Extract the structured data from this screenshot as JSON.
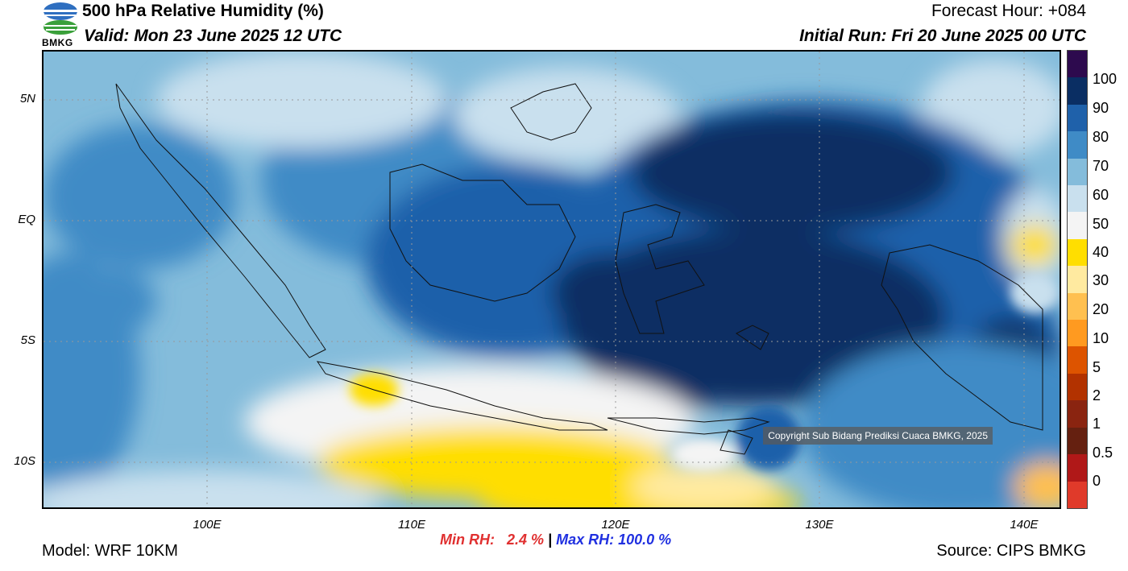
{
  "header": {
    "title": "500 hPa Relative Humidity (%)",
    "valid": "Valid: Mon 23 June 2025 12 UTC",
    "forecast_hour": "Forecast Hour: +084",
    "initial_run": "Initial Run: Fri 20 June 2025 00 UTC",
    "logo_text": "BMKG"
  },
  "map": {
    "lat_labels": [
      "5N",
      "EQ",
      "5S",
      "10S"
    ],
    "lon_labels": [
      "100E",
      "110E",
      "120E",
      "130E",
      "140E"
    ],
    "copyright": "Copyright Sub Bidang Prediksi Cuaca BMKG, 2025"
  },
  "colorbar": {
    "labels": [
      "100",
      "90",
      "80",
      "70",
      "60",
      "50",
      "40",
      "30",
      "20",
      "10",
      "5",
      "2",
      "1",
      "0.5",
      "0"
    ],
    "colors": [
      "#2d0a4e",
      "#0a2e63",
      "#1f61aa",
      "#3f8bc6",
      "#84bcdb",
      "#c9e0ee",
      "#f4f4f4",
      "#ffde00",
      "#ffeaa0",
      "#ffc050",
      "#ff9a20",
      "#dd5400",
      "#b23200",
      "#8a2410",
      "#652010",
      "#b01818",
      "#e03a2a"
    ]
  },
  "footer": {
    "model": "Model: WRF 10KM",
    "source": "Source: CIPS BMKG",
    "min_rh": "Min RH:   2.4 %",
    "separator": "|",
    "max_rh": "Max RH: 100.0 %"
  }
}
